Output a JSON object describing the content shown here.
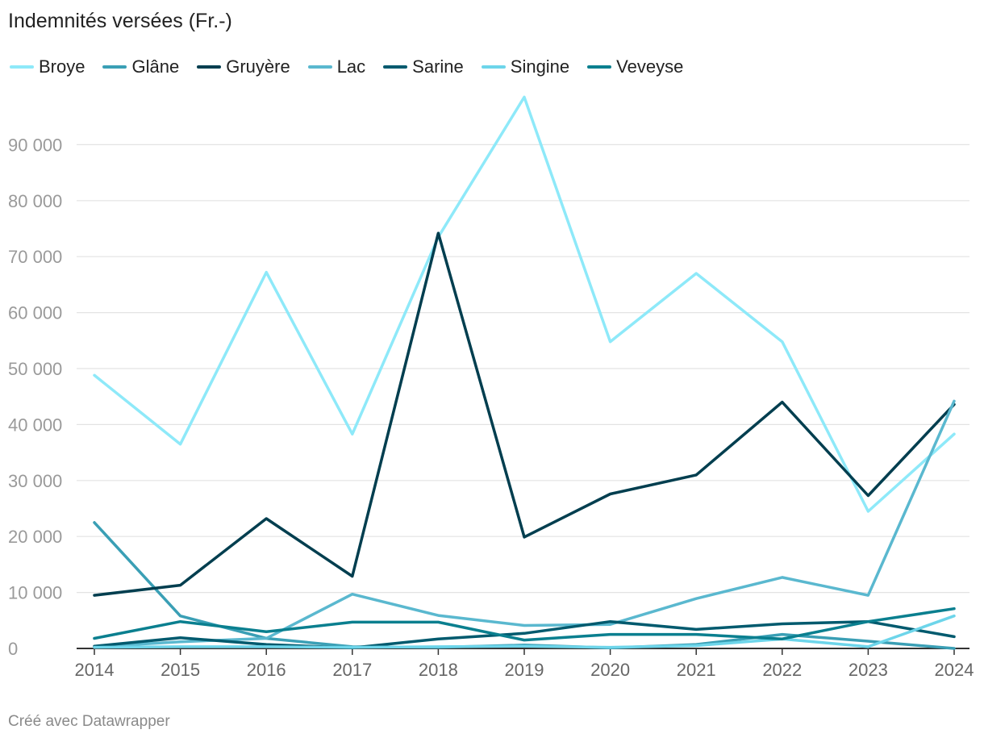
{
  "chart_data": {
    "type": "line",
    "title": "Indemnités versées (Fr.-)",
    "x": [
      "2014",
      "2015",
      "2016",
      "2017",
      "2018",
      "2019",
      "2020",
      "2021",
      "2022",
      "2023",
      "2024"
    ],
    "ylim": [
      0,
      100000
    ],
    "yticks": [
      0,
      10000,
      20000,
      30000,
      40000,
      50000,
      60000,
      70000,
      80000,
      90000
    ],
    "ytick_labels": [
      "0",
      "10 000",
      "20 000",
      "30 000",
      "40 000",
      "50 000",
      "60 000",
      "70 000",
      "80 000",
      "90 000"
    ],
    "grid": true,
    "series": [
      {
        "name": "Broye",
        "color": "#8ee9f9",
        "values": [
          48800,
          36500,
          67200,
          38300,
          73500,
          98500,
          54800,
          67000,
          54800,
          24500,
          38300
        ]
      },
      {
        "name": "Glâne",
        "color": "#3a9fb5",
        "values": [
          22500,
          5800,
          1800,
          300,
          200,
          600,
          100,
          700,
          2500,
          1300,
          0
        ]
      },
      {
        "name": "Gruyère",
        "color": "#003e4f",
        "values": [
          9500,
          11300,
          23200,
          12900,
          74200,
          19900,
          27600,
          31000,
          44000,
          27300,
          43600
        ]
      },
      {
        "name": "Lac",
        "color": "#5ab8cf",
        "values": [
          300,
          1200,
          1800,
          9700,
          5900,
          4100,
          4300,
          8900,
          12700,
          9500,
          44200
        ]
      },
      {
        "name": "Sarine",
        "color": "#005a6e",
        "values": [
          400,
          1900,
          700,
          100,
          1700,
          2700,
          4800,
          3400,
          4400,
          4800,
          2100
        ]
      },
      {
        "name": "Singine",
        "color": "#6dd5ea",
        "values": [
          200,
          300,
          300,
          200,
          300,
          400,
          200,
          500,
          1700,
          300,
          5800
        ]
      },
      {
        "name": "Veveyse",
        "color": "#0a7f8f",
        "values": [
          1800,
          4800,
          3000,
          4700,
          4700,
          1500,
          2500,
          2500,
          1700,
          4800,
          7100
        ]
      }
    ]
  },
  "footer": "Créé avec Datawrapper"
}
